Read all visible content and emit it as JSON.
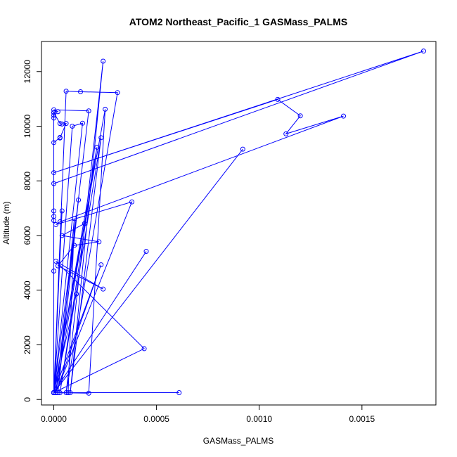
{
  "chart_data": {
    "type": "line",
    "title": "ATOM2 Northeast_Pacific_1 GASMass_PALMS",
    "xlabel": "GASMass_PALMS",
    "ylabel": "Altitude (m)",
    "xlim": [
      -6e-05,
      0.00186
    ],
    "ylim": [
      -200,
      13100
    ],
    "x_ticks": [
      0,
      0.0005,
      0.001,
      0.0015
    ],
    "x_tick_labels": [
      "0.0000",
      "0.0005",
      "0.0010",
      "0.0015"
    ],
    "y_ticks": [
      0,
      2000,
      4000,
      6000,
      8000,
      10000,
      12000
    ],
    "y_tick_labels": [
      "0",
      "2000",
      "4000",
      "6000",
      "8000",
      "10000",
      "12000"
    ],
    "grid": false,
    "legend": "none",
    "series_style": "lines with open circle markers",
    "color": "#0000ff",
    "series": [
      {
        "x": [
          0.0,
          0.0018,
          0.0,
          0.00109,
          0.0012,
          0.00113,
          0.00141,
          3e-05,
          1e-05,
          0.00038,
          1e-05,
          0.00017,
          0.0,
          2e-05,
          0.0,
          3e-05,
          4e-05,
          6e-05,
          3e-05,
          3e-05,
          0.0,
          0.0,
          0.0,
          0.0,
          0.0,
          0.0,
          0.0,
          0.0,
          0.0,
          0.0,
          0.0,
          0.0,
          0.0,
          0.0,
          0.0,
          0.0,
          0.0,
          0.0,
          0.0,
          0.0,
          0.0,
          0.0,
          0.0,
          0.0,
          4e-05,
          0.0,
          9e-05,
          0.00014,
          0.0,
          0.0,
          0.00017,
          0.00025,
          0.0,
          0.0,
          6e-05,
          0.00013,
          0.00031,
          6e-05,
          0.00024,
          8e-05,
          0.00023,
          3e-05,
          0.00021,
          0.0,
          0.00012,
          2e-05,
          0.0001,
          7e-05,
          0.0,
          0.00023,
          1e-05,
          0.00015,
          4e-05,
          0.00022,
          0.0001,
          2e-05,
          0.00024,
          1e-05,
          0.00044,
          0.0,
          0.00092,
          0.0,
          0.00061,
          0.0,
          0.00045,
          0.0,
          0.00011,
          0.0
        ],
        "y": [
          7900,
          12750,
          8300,
          10980,
          10380,
          9720,
          10370,
          6500,
          6400,
          7230,
          250,
          10560,
          10600,
          10530,
          10500,
          10100,
          10080,
          10100,
          9570,
          9590,
          9400,
          10300,
          10400,
          10500,
          250,
          6900,
          6700,
          6550,
          4700,
          250,
          250,
          250,
          250,
          250,
          250,
          250,
          250,
          250,
          250,
          250,
          250,
          250,
          250,
          250,
          6900,
          250,
          10000,
          10110,
          250,
          250,
          230,
          10620,
          250,
          250,
          11280,
          11260,
          11230,
          250,
          12380,
          250,
          9580,
          250,
          9230,
          250,
          7300,
          250,
          6620,
          250,
          250,
          4930,
          250,
          6440,
          6000,
          5770,
          5640,
          4890,
          4040,
          5060,
          1860,
          250,
          9160,
          250,
          250,
          250,
          5420,
          250,
          3860,
          250
        ]
      }
    ]
  }
}
